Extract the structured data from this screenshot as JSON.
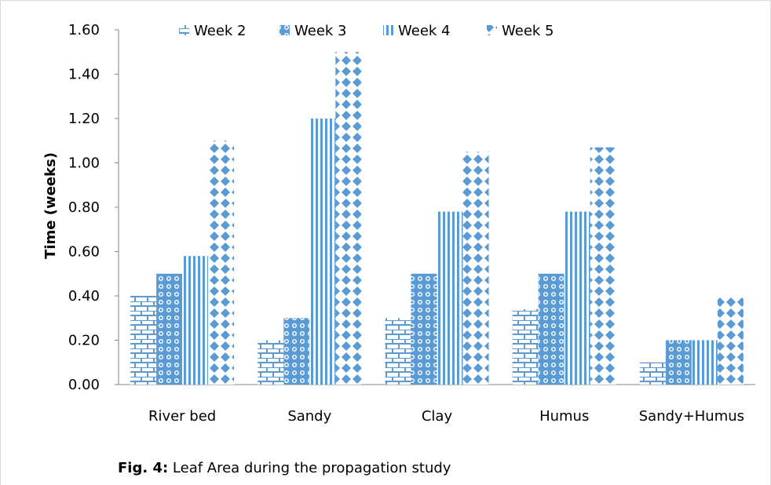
{
  "chart_data": {
    "type": "bar",
    "categories": [
      "River bed",
      "Sandy",
      "Clay",
      "Humus",
      "Sandy+Humus"
    ],
    "series": [
      {
        "name": "Week 2",
        "values": [
          0.4,
          0.2,
          0.3,
          0.34,
          0.1
        ],
        "pattern": "brick"
      },
      {
        "name": "Week 3",
        "values": [
          0.5,
          0.3,
          0.5,
          0.5,
          0.2
        ],
        "pattern": "circles"
      },
      {
        "name": "Week 4",
        "values": [
          0.58,
          1.2,
          0.78,
          0.78,
          0.2
        ],
        "pattern": "vertical-stripes"
      },
      {
        "name": "Week 5",
        "values": [
          1.1,
          1.5,
          1.05,
          1.07,
          0.4
        ],
        "pattern": "diamonds"
      }
    ],
    "ylabel": "Time (weeks)",
    "xlabel": "",
    "ylim": [
      0,
      1.6
    ],
    "yticks": [
      "0.00",
      "0.20",
      "0.40",
      "0.60",
      "0.80",
      "1.00",
      "1.20",
      "1.40",
      "1.60"
    ],
    "grid": false,
    "legend_position": "top",
    "colors": {
      "bar": "#5b9bd5",
      "bar_dark": "#4a86c5",
      "axis": "#868686"
    }
  },
  "caption": {
    "label": "Fig. 4:",
    "text": " Leaf Area during the propagation study"
  }
}
